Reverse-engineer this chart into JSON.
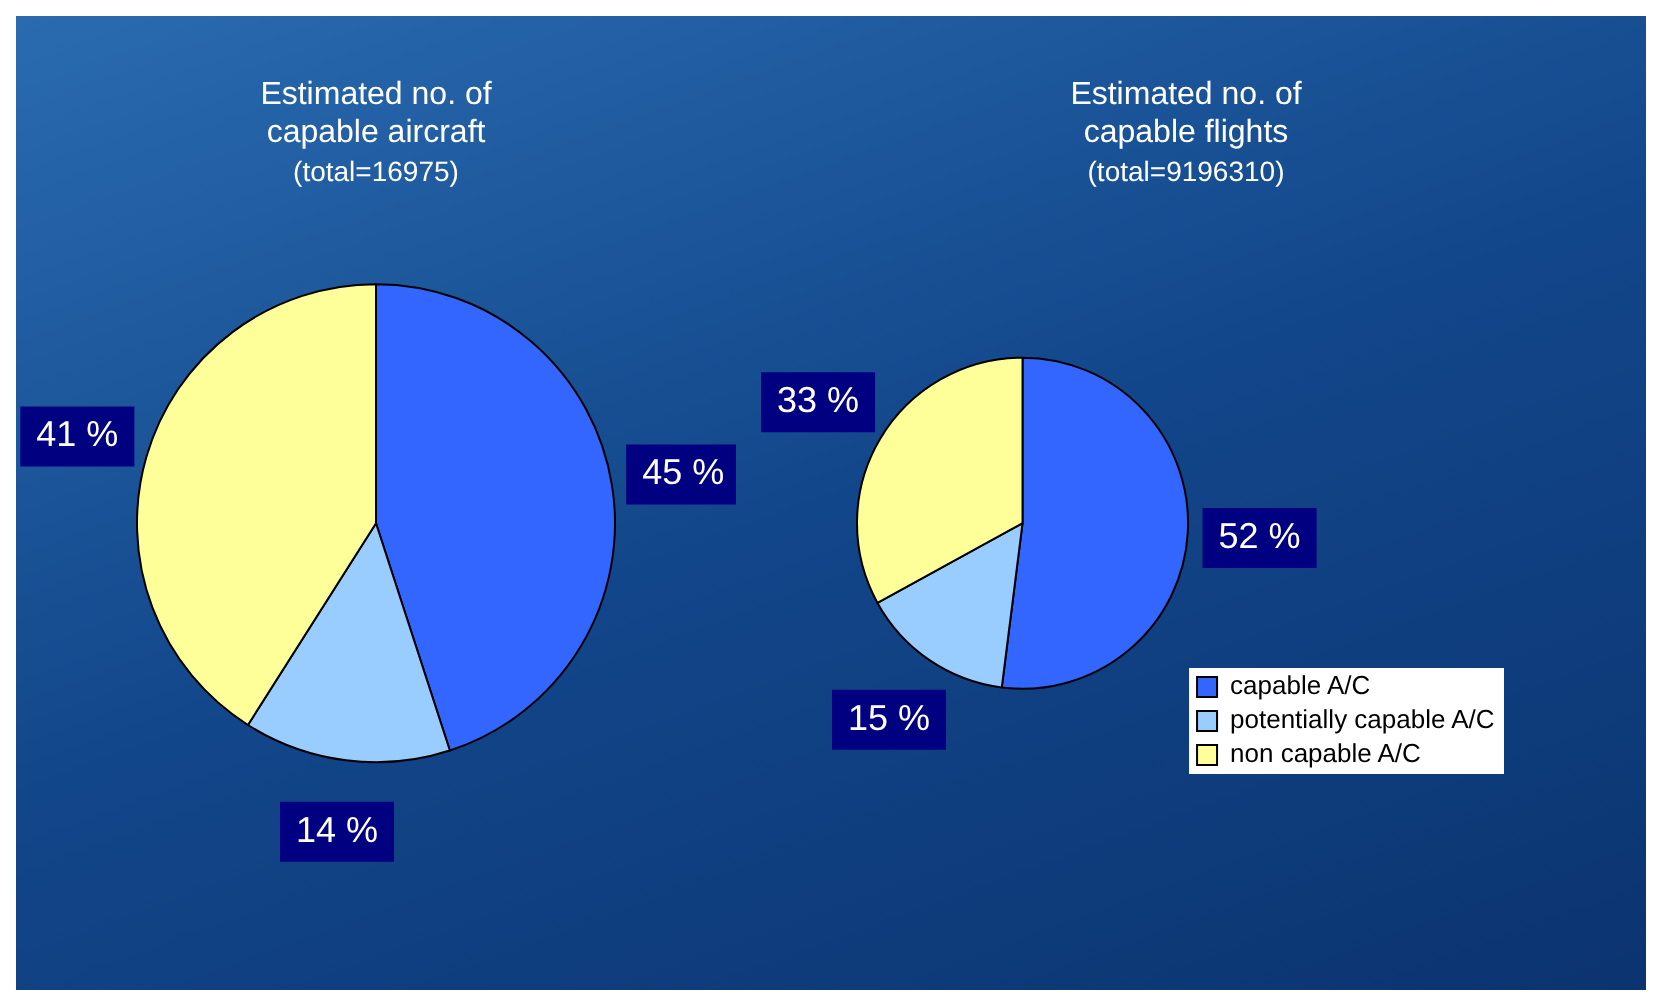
{
  "chart_data": [
    {
      "type": "pie",
      "title": "Estimated no. of capable aircraft",
      "subtitle": "(total=16975)",
      "categories": [
        null,
        null,
        null
      ],
      "values": [
        45,
        14,
        41
      ],
      "value_labels": [
        "45 %",
        "14 %",
        "41 %"
      ],
      "colors": [
        "#3366ff",
        "#99ccff",
        "#ffff99"
      ],
      "legend": false
    },
    {
      "type": "pie",
      "title": "Estimated no. of capable flights",
      "subtitle": "(total=9196310)",
      "categories": [
        "capable A/C",
        "potentially capable A/C",
        "non capable A/C"
      ],
      "values": [
        52,
        15,
        33
      ],
      "value_labels": [
        "52 %",
        "15 %",
        "33 %"
      ],
      "colors": [
        "#3366ff",
        "#99ccff",
        "#ffff99"
      ],
      "legend": "bottom right"
    }
  ]
}
